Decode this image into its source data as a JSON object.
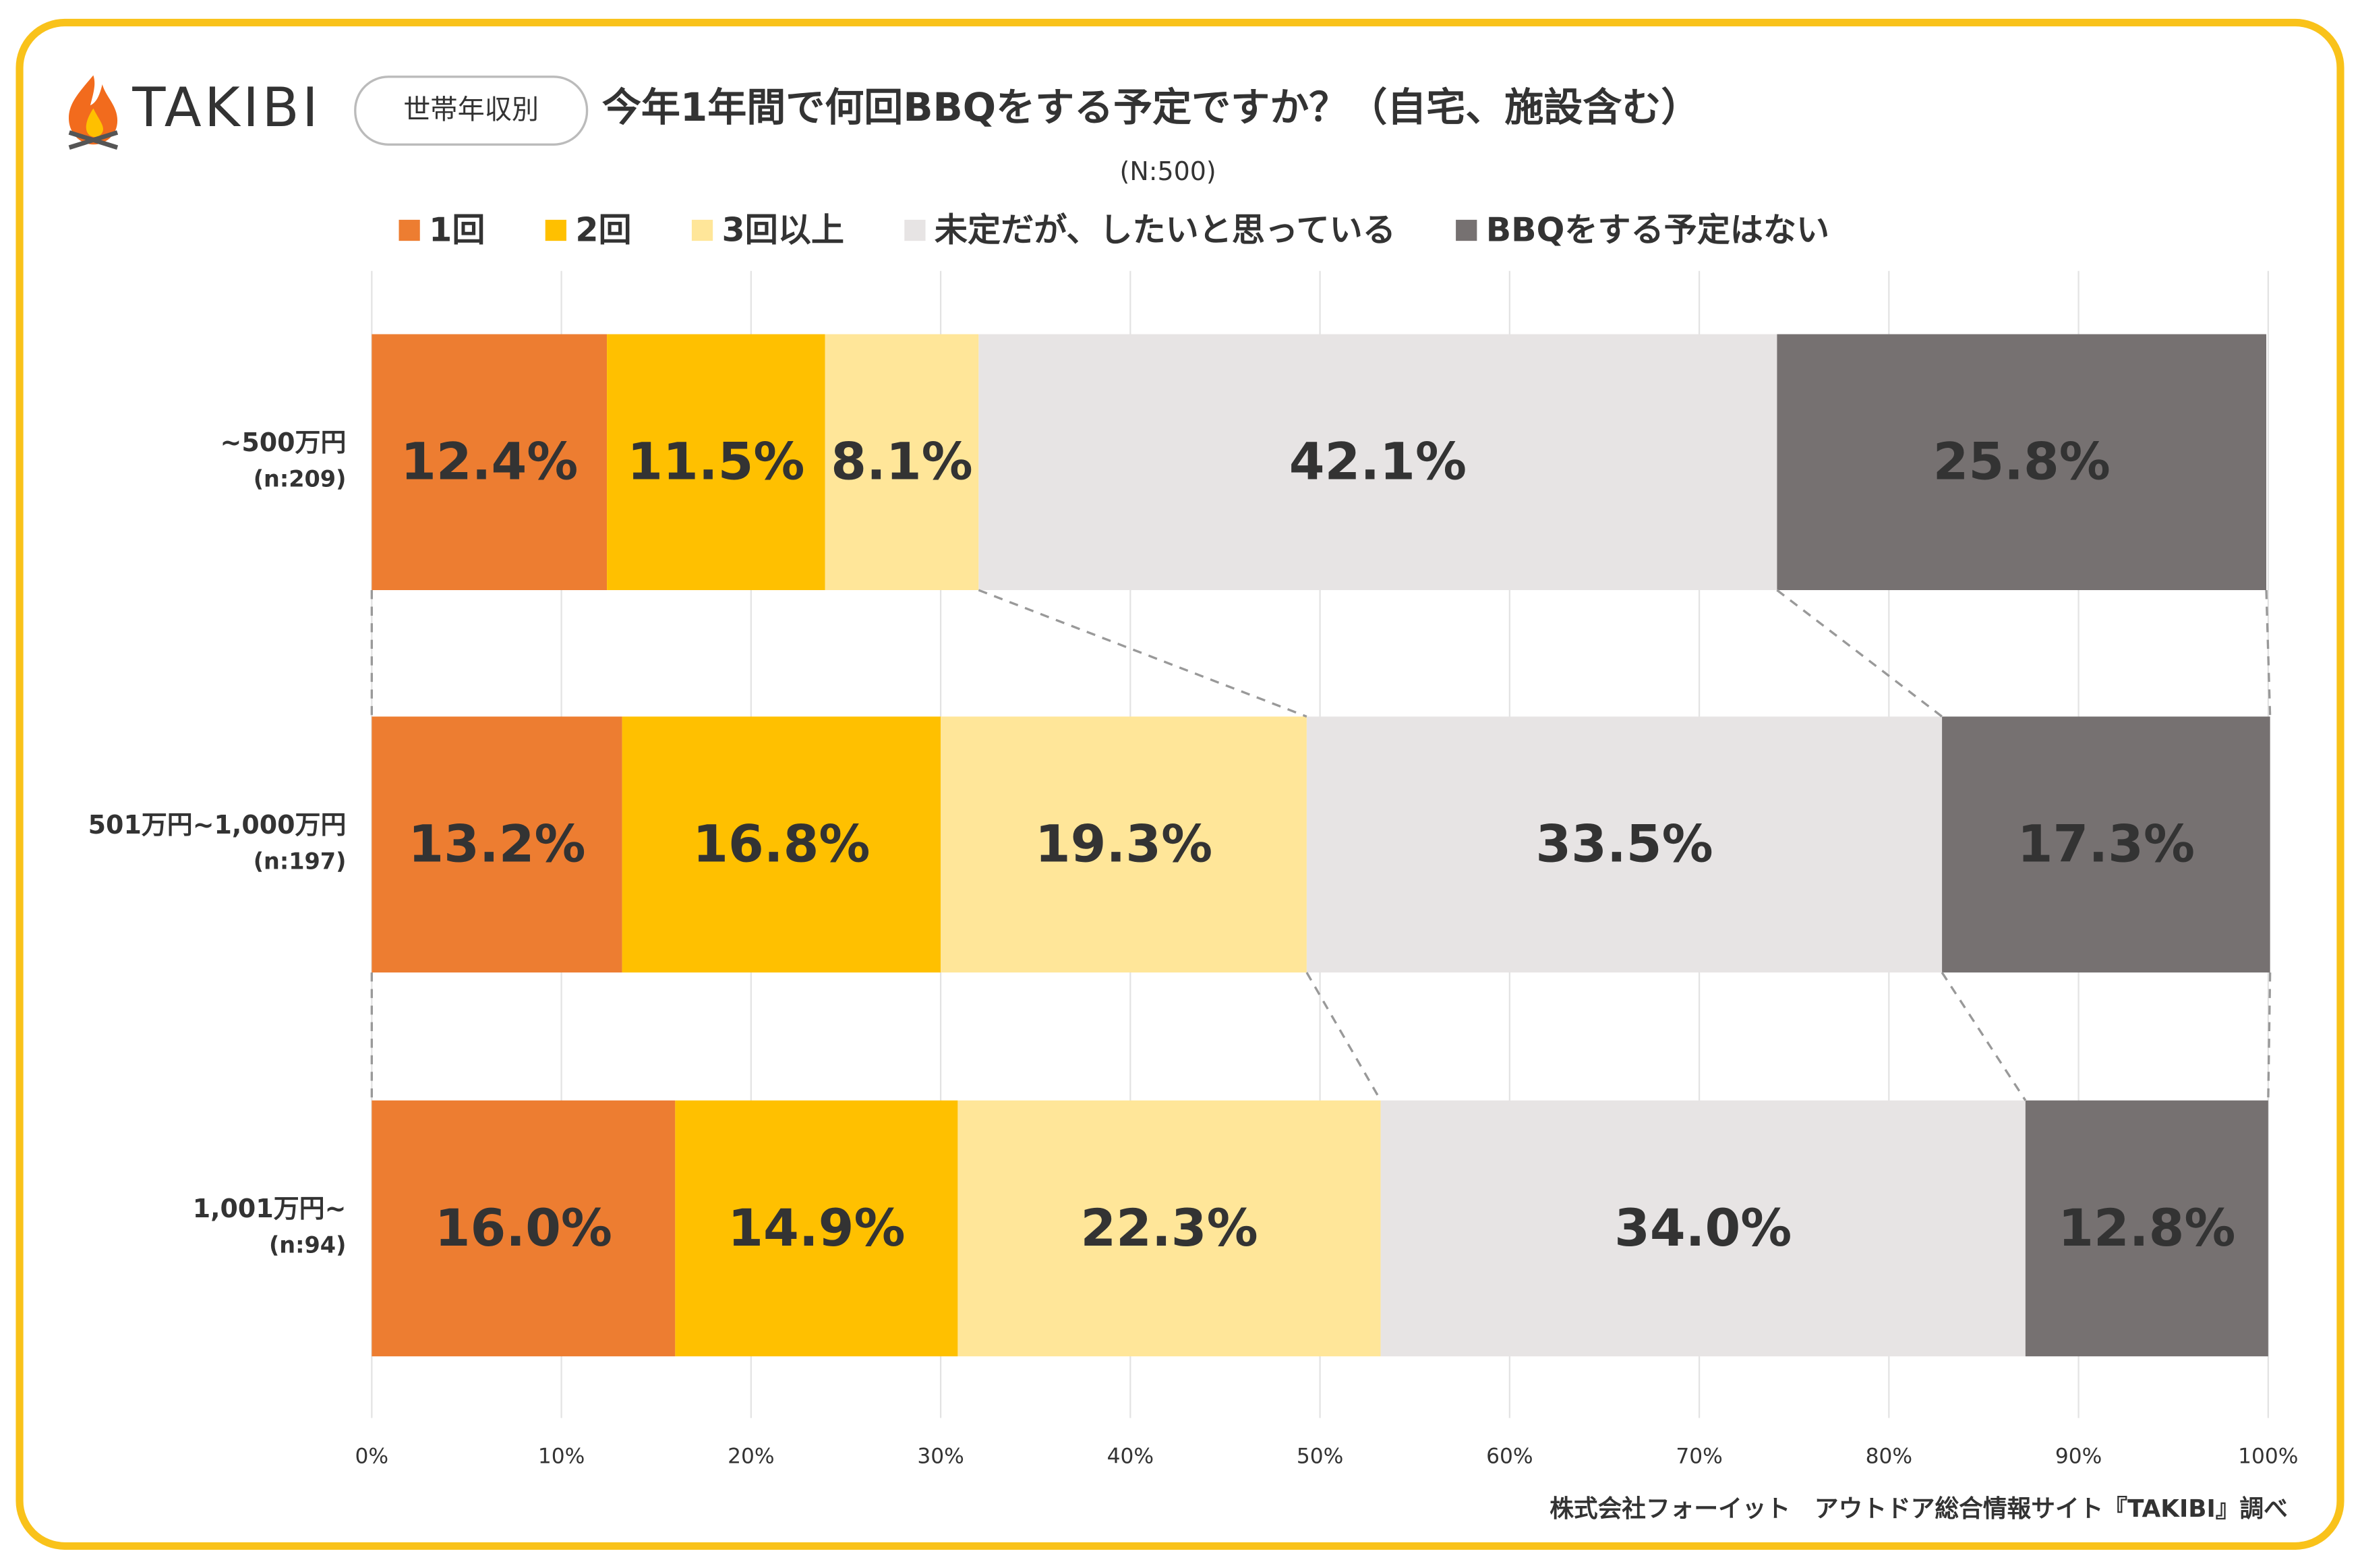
{
  "brand": "TAKIBI",
  "badge": "世帯年収別",
  "source": "株式会社フォーイット　アウトドア総合情報サイト『TAKIBI』調べ",
  "chart_data": {
    "type": "stacked-hbar",
    "title": "今年1年間で何回BBQをする予定ですか？（自宅、施設含む）",
    "subtitle": "(N:500)",
    "categories": [
      "~500万円",
      "501万円~1,000万円",
      "1,001万円~"
    ],
    "category_notes": [
      "(n:209)",
      "(n:197)",
      "(n:94)"
    ],
    "series": [
      {
        "name": "1回",
        "color": "#ed7d31",
        "label_color": "#ffffff",
        "values": [
          12.4,
          13.2,
          16.0
        ],
        "value_labels": [
          "12.4%",
          "13.2%",
          "16.0%"
        ]
      },
      {
        "name": "2回",
        "color": "#ffc000",
        "label_color": "#404040",
        "values": [
          11.5,
          16.8,
          14.9
        ],
        "value_labels": [
          "11.5%",
          "16.8%",
          "14.9%"
        ]
      },
      {
        "name": "3回以上",
        "color": "#ffe699",
        "label_color": "#404040",
        "values": [
          8.1,
          19.3,
          22.3
        ],
        "value_labels": [
          "8.1%",
          "19.3%",
          "22.3%"
        ]
      },
      {
        "name": "未定だが、したいと思っている",
        "color": "#e7e4e4",
        "label_color": "#404040",
        "values": [
          42.1,
          33.5,
          34.0
        ],
        "value_labels": [
          "42.1%",
          "33.5%",
          "34.0%"
        ]
      },
      {
        "name": "BBQをする予定はない",
        "color": "#767171",
        "label_color": "#ffffff",
        "values": [
          25.8,
          17.3,
          12.8
        ],
        "value_labels": [
          "25.8%",
          "17.3%",
          "12.8%"
        ]
      }
    ],
    "xlim": [
      0,
      100
    ],
    "xticks": [
      {
        "value": 0,
        "label": "0%"
      },
      {
        "value": 10,
        "label": "10%"
      },
      {
        "value": 20,
        "label": "20%"
      },
      {
        "value": 30,
        "label": "30%"
      },
      {
        "value": 40,
        "label": "40%"
      },
      {
        "value": 50,
        "label": "50%"
      },
      {
        "value": 60,
        "label": "60%"
      },
      {
        "value": 70,
        "label": "70%"
      },
      {
        "value": 80,
        "label": "80%"
      },
      {
        "value": 90,
        "label": "90%"
      },
      {
        "value": 100,
        "label": "100%"
      }
    ],
    "grid": true,
    "legend": "top"
  }
}
